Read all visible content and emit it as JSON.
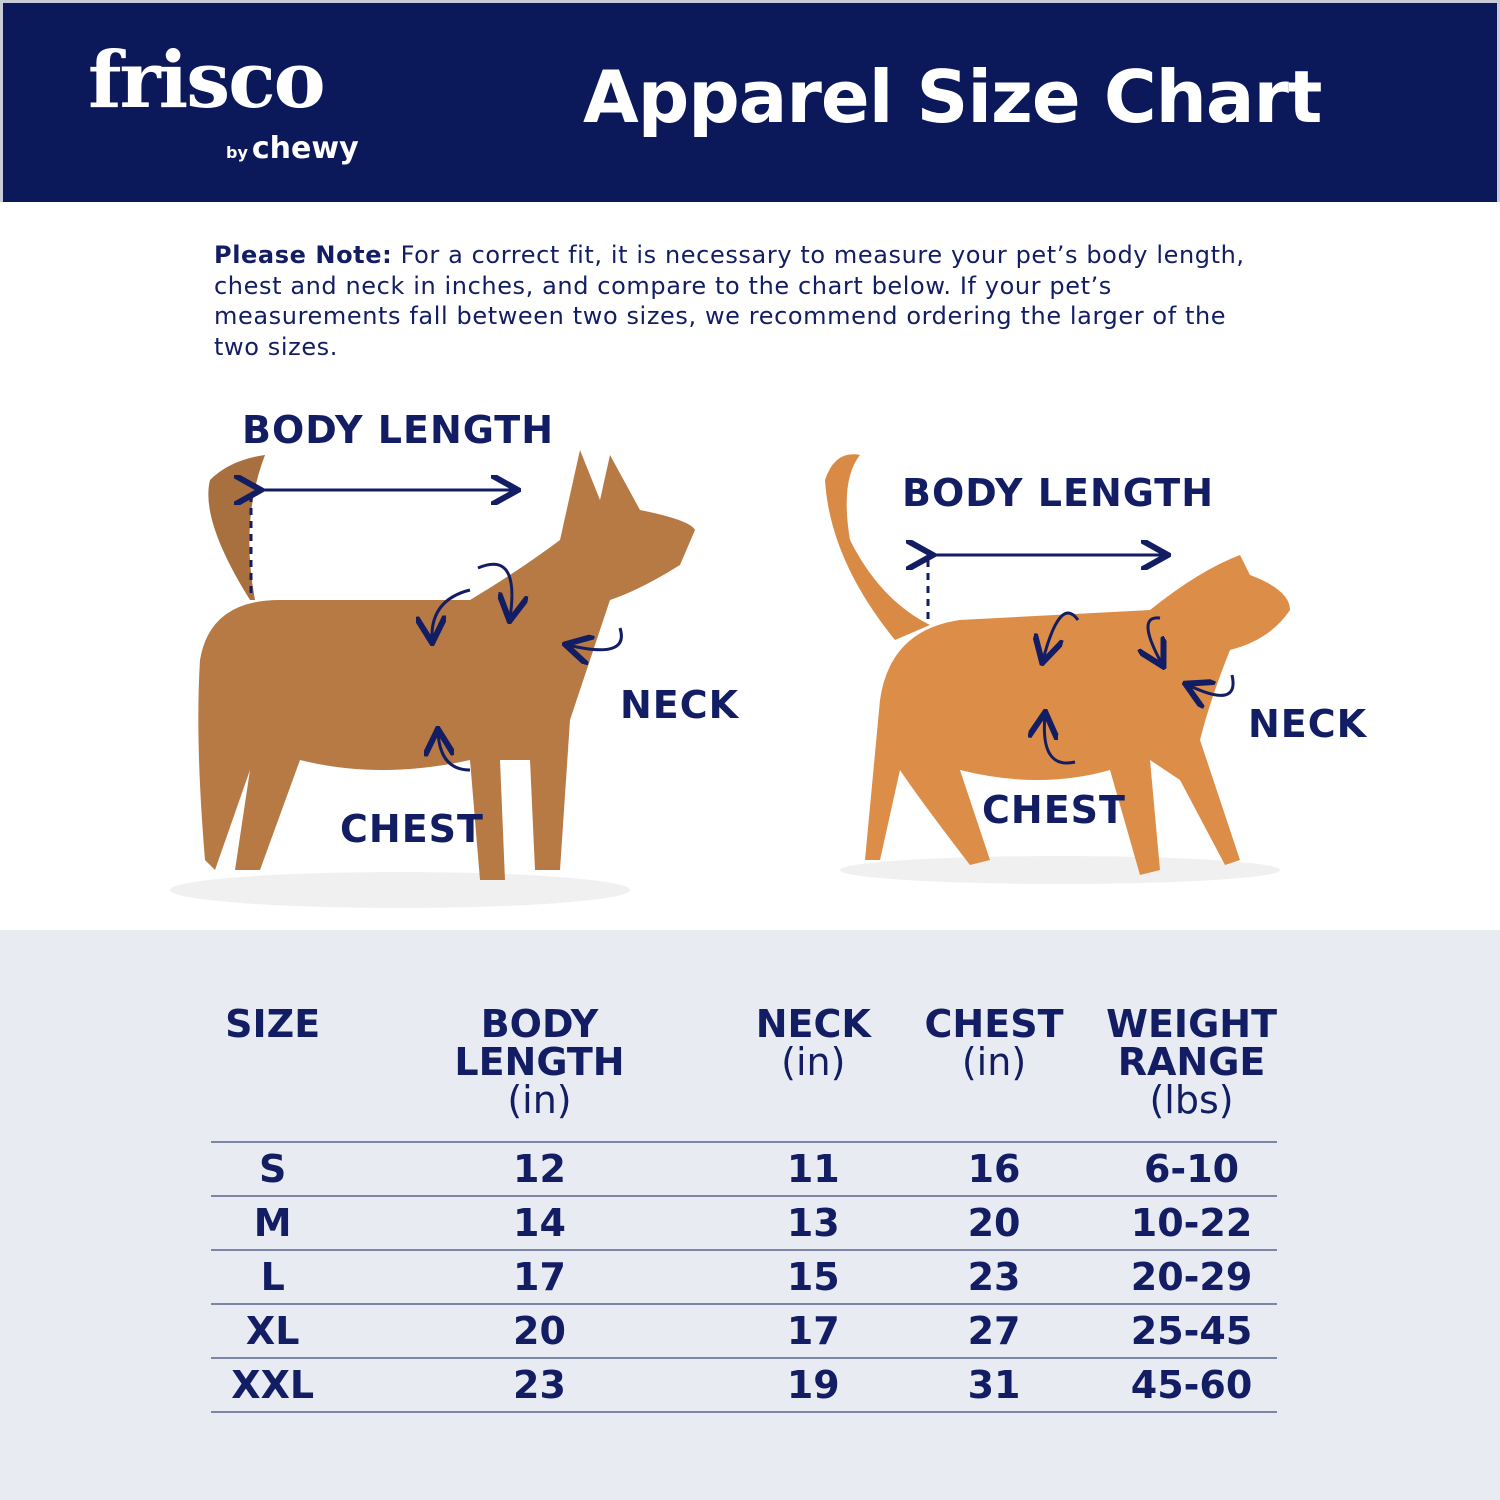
{
  "header": {
    "logo_brand": "frisco",
    "logo_by": "by",
    "logo_sub": "chewy",
    "title": "Apparel Size Chart"
  },
  "note": {
    "label": "Please Note:",
    "text": " For a correct fit, it is necessary to measure your pet’s body length, chest and neck in inches, and compare to the chart below. If your pet’s measurements fall between two sizes, we recommend ordering the larger of the two sizes."
  },
  "dog": {
    "body_length": "BODY LENGTH",
    "neck": "NECK",
    "chest": "CHEST"
  },
  "cat": {
    "body_length": "BODY LENGTH",
    "neck": "NECK",
    "chest": "CHEST"
  },
  "colors": {
    "navy": "#0b195b",
    "text": "#121d63",
    "table_bg": "#e8ebf2"
  },
  "table": {
    "headers": [
      {
        "title": "SIZE",
        "unit": ""
      },
      {
        "title": "BODY LENGTH",
        "unit": "(in)"
      },
      {
        "title": "NECK",
        "unit": "(in)"
      },
      {
        "title": "CHEST",
        "unit": "(in)"
      },
      {
        "title": "WEIGHT RANGE",
        "unit": "(lbs)"
      }
    ],
    "rows": [
      [
        "S",
        "12",
        "11",
        "16",
        "6-10"
      ],
      [
        "M",
        "14",
        "13",
        "20",
        "10-22"
      ],
      [
        "L",
        "17",
        "15",
        "23",
        "20-29"
      ],
      [
        "XL",
        "20",
        "17",
        "27",
        "25-45"
      ],
      [
        "XXL",
        "23",
        "19",
        "31",
        "45-60"
      ]
    ]
  }
}
